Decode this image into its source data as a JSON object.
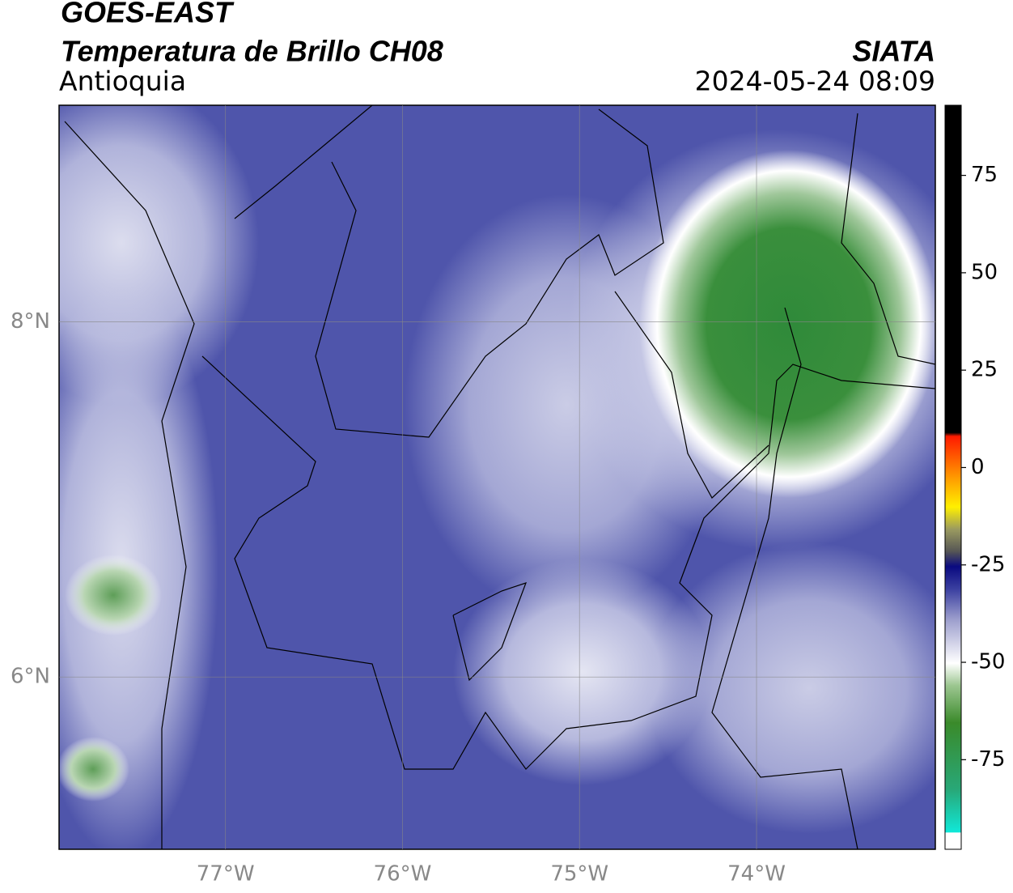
{
  "header": {
    "title": "GOES-EAST",
    "subtitle": "Temperatura de Brillo CH08",
    "region": "Antioquia",
    "source": "SIATA",
    "timestamp": "2024-05-24 08:09"
  },
  "map": {
    "lonlim": [
      -77.94,
      -72.99
    ],
    "latlim": [
      5.03,
      9.22
    ],
    "lon_ticks": [
      {
        "value": -77,
        "label": "77°W"
      },
      {
        "value": -76,
        "label": "76°W"
      },
      {
        "value": -75,
        "label": "75°W"
      },
      {
        "value": -74,
        "label": "74°W"
      }
    ],
    "lat_ticks": [
      {
        "value": 8,
        "label": "8°N"
      },
      {
        "value": 6,
        "label": "6°N"
      }
    ]
  },
  "colorbar": {
    "lim": [
      -98,
      93
    ],
    "ticks": [
      75,
      50,
      25,
      0,
      -25,
      -50,
      -75
    ]
  }
}
